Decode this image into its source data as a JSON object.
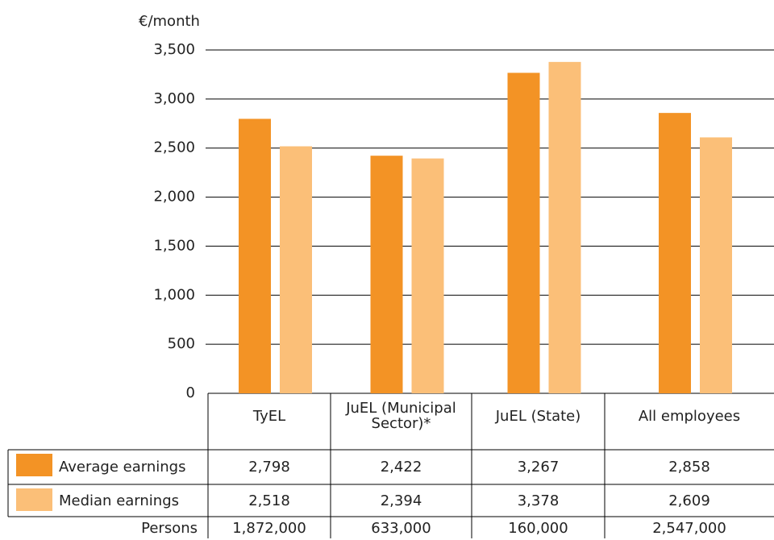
{
  "chart_data": {
    "type": "bar",
    "y_label": "€/month",
    "categories": [
      "TyEL",
      "JuEL (Municipal Sector)*",
      "JuEL (State)",
      "All employees"
    ],
    "series": [
      {
        "name": "Average earnings",
        "color": "#f39325",
        "values": [
          2798,
          2422,
          3267,
          2858
        ],
        "value_labels": [
          "2,798",
          "2,422",
          "3,267",
          "2,858"
        ]
      },
      {
        "name": "Median earnings",
        "color": "#fbbf78",
        "values": [
          2518,
          2394,
          3378,
          2609
        ],
        "value_labels": [
          "2,518",
          "2,394",
          "3,378",
          "2,609"
        ]
      }
    ],
    "persons": {
      "name": "Persons",
      "values": [
        1872000,
        633000,
        160000,
        2547000
      ],
      "value_labels": [
        "1,872,000",
        "633,000",
        "160,000",
        "2,547,000"
      ]
    },
    "ylim": [
      0,
      3500
    ],
    "yticks": [
      0,
      500,
      {
        "value": 1000,
        "label": "1,000"
      },
      {
        "value": 1500,
        "label": "1,500"
      },
      {
        "value": 2000,
        "label": "2,000"
      },
      {
        "value": 2500,
        "label": "2,500"
      },
      {
        "value": 3000,
        "label": "3,000"
      },
      {
        "value": 3500,
        "label": "3,500"
      }
    ],
    "grid": true
  }
}
